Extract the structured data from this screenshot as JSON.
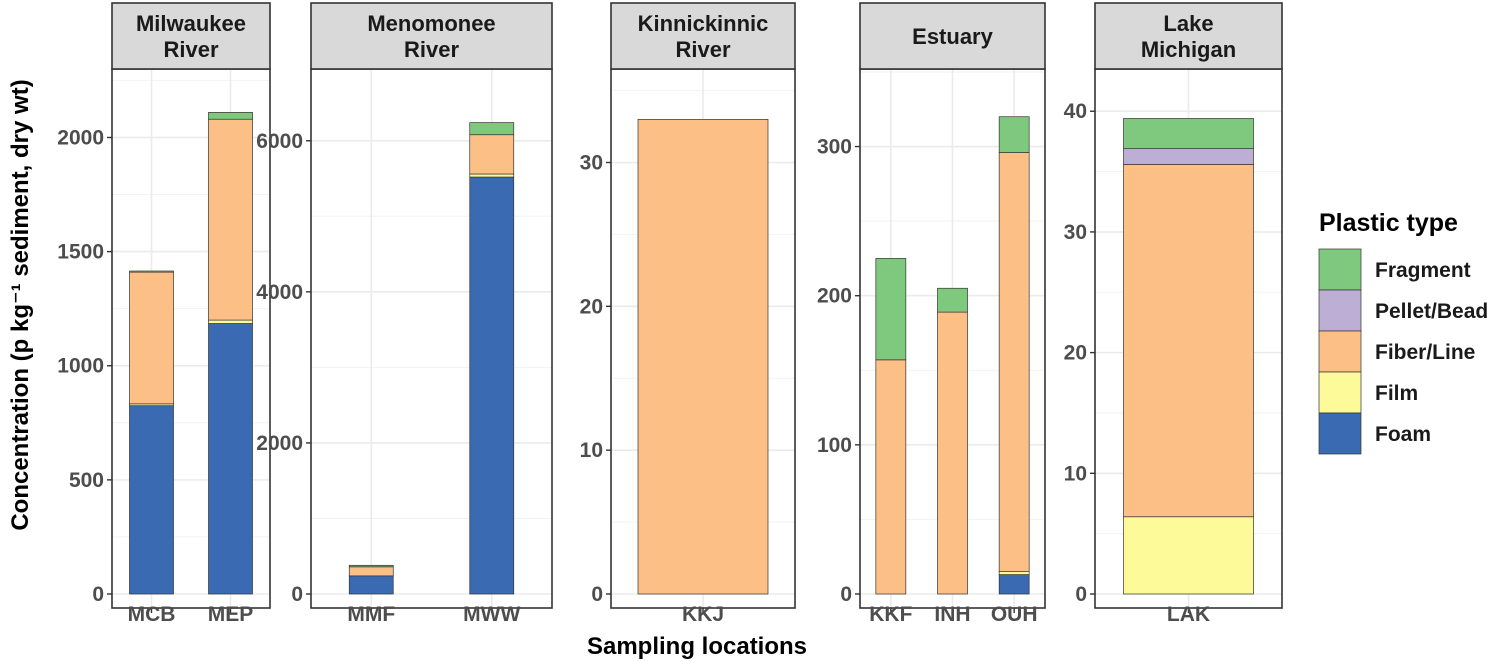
{
  "chart_data": {
    "type": "bar",
    "stacked": true,
    "xlabel": "Sampling locations",
    "ylabel": "Concentration  (p kg⁻¹ sediment, dry wt)",
    "grid": true,
    "legend": {
      "title": "Plastic type",
      "placement": "right",
      "entries": [
        "Fragment",
        "Pellet/Bead",
        "Fiber/Line",
        "Film",
        "Foam"
      ]
    },
    "colors": {
      "Foam": "#3a6bb2",
      "Film": "#fdfb99",
      "Fiber/Line": "#fcc086",
      "Pellet/Bead": "#bcaed4",
      "Fragment": "#7fc97f"
    },
    "stack_order": [
      "Foam",
      "Film",
      "Fiber/Line",
      "Pellet/Bead",
      "Fragment"
    ],
    "panels": [
      {
        "title_lines": [
          "Milwaukee",
          "River"
        ],
        "ylim": [
          0,
          2300
        ],
        "yticks": [
          0,
          500,
          1000,
          1500,
          2000
        ],
        "categories": [
          "MCB",
          "MEP"
        ],
        "series": [
          {
            "name": "Foam",
            "values": [
              825,
              1185
            ]
          },
          {
            "name": "Film",
            "values": [
              8,
              15
            ]
          },
          {
            "name": "Fiber/Line",
            "values": [
              577,
              880
            ]
          },
          {
            "name": "Pellet/Bead",
            "values": [
              0,
              0
            ]
          },
          {
            "name": "Fragment",
            "values": [
              5,
              30
            ]
          }
        ]
      },
      {
        "title_lines": [
          "Menomonee",
          "River"
        ],
        "ylim": [
          0,
          6950
        ],
        "yticks": [
          0,
          2000,
          4000,
          6000
        ],
        "categories": [
          "MMF",
          "MWW"
        ],
        "series": [
          {
            "name": "Foam",
            "values": [
              240,
              5520
            ]
          },
          {
            "name": "Film",
            "values": [
              0,
              40
            ]
          },
          {
            "name": "Fiber/Line",
            "values": [
              120,
              520
            ]
          },
          {
            "name": "Pellet/Bead",
            "values": [
              0,
              0
            ]
          },
          {
            "name": "Fragment",
            "values": [
              20,
              160
            ]
          }
        ]
      },
      {
        "title_lines": [
          "Kinnickinnic",
          "River"
        ],
        "ylim": [
          0,
          36.5
        ],
        "yticks": [
          0,
          10,
          20,
          30
        ],
        "categories": [
          "KKJ"
        ],
        "series": [
          {
            "name": "Foam",
            "values": [
              0
            ]
          },
          {
            "name": "Film",
            "values": [
              0
            ]
          },
          {
            "name": "Fiber/Line",
            "values": [
              33
            ]
          },
          {
            "name": "Pellet/Bead",
            "values": [
              0
            ]
          },
          {
            "name": "Fragment",
            "values": [
              0
            ]
          }
        ]
      },
      {
        "title_lines": [
          "Estuary"
        ],
        "ylim": [
          0,
          352
        ],
        "yticks": [
          0,
          100,
          200,
          300
        ],
        "categories": [
          "KKF",
          "INH",
          "OUH"
        ],
        "series": [
          {
            "name": "Foam",
            "values": [
              0,
              0,
              13
            ]
          },
          {
            "name": "Film",
            "values": [
              0,
              0,
              2
            ]
          },
          {
            "name": "Fiber/Line",
            "values": [
              157,
              189,
              281
            ]
          },
          {
            "name": "Pellet/Bead",
            "values": [
              0,
              0,
              0
            ]
          },
          {
            "name": "Fragment",
            "values": [
              68,
              16,
              24
            ]
          }
        ]
      },
      {
        "title_lines": [
          "Lake",
          "Michigan"
        ],
        "ylim": [
          0,
          43.5
        ],
        "yticks": [
          0,
          10,
          20,
          30,
          40
        ],
        "categories": [
          "LAK"
        ],
        "series": [
          {
            "name": "Foam",
            "values": [
              0
            ]
          },
          {
            "name": "Film",
            "values": [
              6.4
            ]
          },
          {
            "name": "Fiber/Line",
            "values": [
              29.2
            ]
          },
          {
            "name": "Pellet/Bead",
            "values": [
              1.3
            ]
          },
          {
            "name": "Fragment",
            "values": [
              2.5
            ]
          }
        ]
      }
    ]
  }
}
